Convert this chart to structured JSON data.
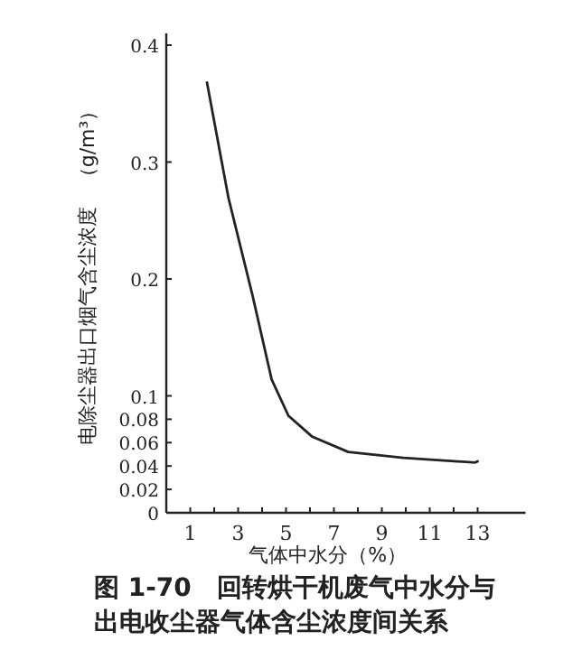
{
  "chart_data": {
    "type": "line",
    "title": "图 1-70　回转烘干机废气中水分与出电收尘器气体含尘浓度间关系",
    "xlabel": "气体中水分（%）",
    "ylabel": "电除尘器出口烟气含尘浓度　（g/m³）",
    "xlim": [
      0,
      15
    ],
    "ylim": [
      0,
      0.41
    ],
    "xticks": [
      1,
      {
        "value": 2,
        "label": null
      },
      3,
      {
        "value": 4,
        "label": null
      },
      5,
      {
        "value": 6,
        "label": null
      },
      7,
      {
        "value": 8,
        "label": null
      },
      9,
      {
        "value": 10,
        "label": null
      },
      11,
      {
        "value": 12,
        "label": null
      },
      13
    ],
    "yticks": [
      0,
      0.02,
      0.04,
      0.06,
      0.08,
      0.1,
      0.2,
      0.3,
      0.4
    ],
    "grid": false,
    "marker": "none",
    "line_style": "solid",
    "series": [
      {
        "color": "#222222",
        "x": [
          1.7,
          2.6,
          3.6,
          4.4,
          5.1,
          6.1,
          7.6,
          9.9,
          12.9,
          13
        ],
        "values": [
          0.368,
          0.269,
          0.186,
          0.114,
          0.083,
          0.065,
          0.052,
          0.047,
          0.043,
          0.044
        ]
      }
    ]
  }
}
